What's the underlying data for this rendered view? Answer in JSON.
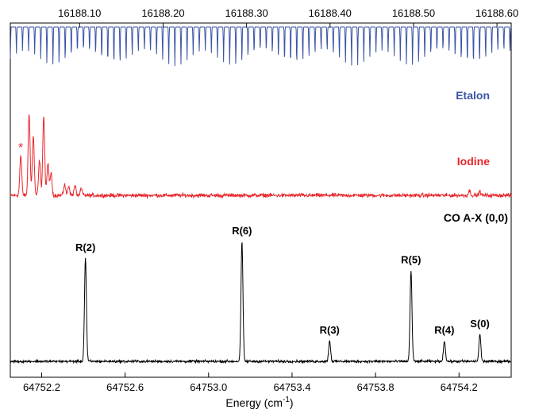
{
  "chart_data": {
    "type": "line",
    "title": "",
    "xlabel": "Energy (cm",
    "xlabel_sup": "-1",
    "xlabel_close": ")",
    "x_bottom": {
      "range": [
        64752.05,
        64754.45
      ],
      "ticks": [
        64752.2,
        64752.6,
        64753.0,
        64753.4,
        64753.8,
        64754.2
      ],
      "tick_labels": [
        "64752.2",
        "64752.6",
        "64753.0",
        "64753.4",
        "64753.8",
        "64754.2"
      ]
    },
    "x_top": {
      "range": [
        16188.017,
        16188.617
      ],
      "ticks": [
        16188.1,
        16188.2,
        16188.3,
        16188.4,
        16188.5,
        16188.6
      ],
      "tick_labels": [
        "16188.10",
        "16188.20",
        "16188.30",
        "16188.40",
        "16188.50",
        "16188.60"
      ]
    },
    "grid": false,
    "legend": "none",
    "series": [
      {
        "name": "Etalon",
        "color": "#3b55a4",
        "kind": "etalon_comb",
        "fringe_spacing": 0.0292,
        "baseline": 1.0,
        "dip_depth": 0.45
      },
      {
        "name": "Iodine",
        "color": "#e8262b",
        "kind": "peaks",
        "baseline": 0.0,
        "noise": 0.06,
        "peaks": [
          {
            "x": 64752.1,
            "h": 1.25
          },
          {
            "x": 64752.14,
            "h": 2.6
          },
          {
            "x": 64752.16,
            "h": 1.9
          },
          {
            "x": 64752.19,
            "h": 1.1
          },
          {
            "x": 64752.21,
            "h": 2.5
          },
          {
            "x": 64752.23,
            "h": 1.0
          },
          {
            "x": 64752.245,
            "h": 0.7
          },
          {
            "x": 64752.31,
            "h": 0.35
          },
          {
            "x": 64752.33,
            "h": 0.3
          },
          {
            "x": 64752.36,
            "h": 0.3
          },
          {
            "x": 64752.39,
            "h": 0.2
          },
          {
            "x": 64754.25,
            "h": 0.15
          },
          {
            "x": 64754.3,
            "h": 0.12
          }
        ]
      },
      {
        "name": "CO A-X (0,0)",
        "color": "#000000",
        "kind": "peaks",
        "baseline": 0.0,
        "noise": 0.012,
        "peaks": [
          {
            "x": 64752.41,
            "h": 1.0,
            "label": "R(2)"
          },
          {
            "x": 64753.16,
            "h": 1.16,
            "label": "R(6)"
          },
          {
            "x": 64753.58,
            "h": 0.2,
            "label": "R(3)"
          },
          {
            "x": 64753.97,
            "h": 0.88,
            "label": "R(5)"
          },
          {
            "x": 64754.13,
            "h": 0.2,
            "label": "R(4)"
          },
          {
            "x": 64754.3,
            "h": 0.26,
            "label": "S(0)"
          }
        ]
      }
    ],
    "annotations": [
      {
        "text": "*",
        "series": "Iodine",
        "x": 64752.1
      }
    ]
  }
}
